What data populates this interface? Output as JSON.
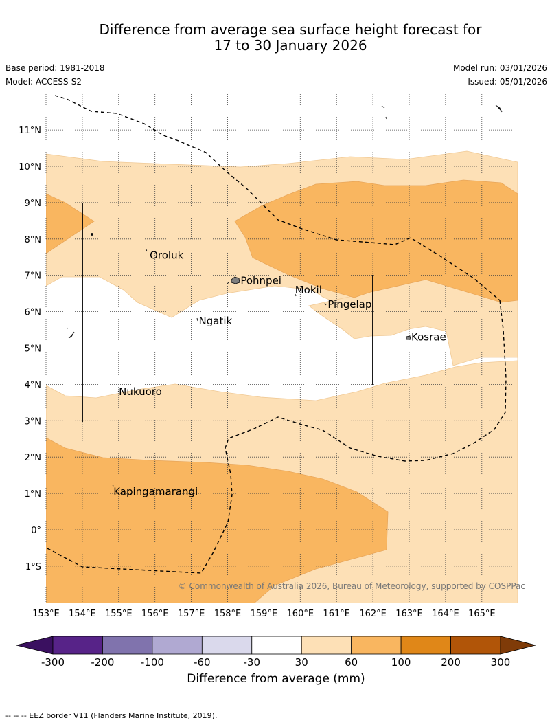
{
  "title": {
    "line1": "Difference from average sea surface height forecast for",
    "line2": "17 to 30 January 2026"
  },
  "meta": {
    "base_period": "Base period: 1981-2018",
    "model": "Model: ACCESS-S2",
    "model_run": "Model run: 03/01/2026",
    "issued": "Issued: 05/01/2026"
  },
  "map": {
    "lon_ticks": [
      "153°E",
      "154°E",
      "155°E",
      "156°E",
      "157°E",
      "158°E",
      "159°E",
      "160°E",
      "161°E",
      "162°E",
      "163°E",
      "164°E",
      "165°E"
    ],
    "lat_ticks": [
      "11°N",
      "10°N",
      "9°N",
      "8°N",
      "7°N",
      "6°N",
      "5°N",
      "4°N",
      "3°N",
      "2°N",
      "1°N",
      "0°",
      "1°S"
    ],
    "places": [
      {
        "name": "Oroluk",
        "lon": 155.8,
        "lat": 7.55
      },
      {
        "name": "Pohnpei",
        "lon": 158.3,
        "lat": 6.85
      },
      {
        "name": "Mokil",
        "lon": 159.8,
        "lat": 6.6
      },
      {
        "name": "Pingelap",
        "lon": 160.7,
        "lat": 6.2
      },
      {
        "name": "Ngatik",
        "lon": 157.15,
        "lat": 5.75
      },
      {
        "name": "Kosrae",
        "lon": 163.0,
        "lat": 5.3
      },
      {
        "name": "Nukuoro",
        "lon": 154.95,
        "lat": 3.8
      },
      {
        "name": "Kapingamarangi",
        "lon": 154.8,
        "lat": 1.05
      }
    ],
    "copyright": "© Commonwealth of Australia 2026, Bureau of Meteorology, supported by COSPPac",
    "colors": {
      "c30_60": "#fde0b6",
      "c60_100": "#f9b660",
      "land": "#808080"
    }
  },
  "colorbar": {
    "colors": [
      "#3a1060",
      "#572388",
      "#8073ad",
      "#b0a9d2",
      "#dad9ec",
      "#ffffff",
      "#fde0b6",
      "#f9b660",
      "#e08718",
      "#b15508",
      "#7f3b08"
    ],
    "tick_labels": [
      "-300",
      "-200",
      "-100",
      "-60",
      "-30",
      "30",
      "60",
      "100",
      "200",
      "300"
    ],
    "label": "Difference from average (mm)"
  },
  "footnote": "--  --  -- EEZ border V11 (Flanders Marine Institute, 2019)."
}
